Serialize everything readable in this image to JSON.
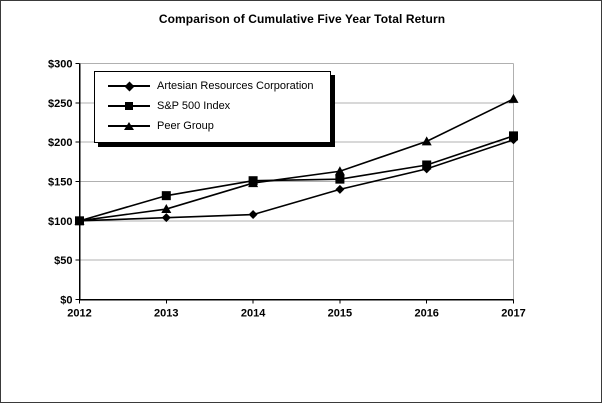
{
  "figure": {
    "title": "Comparison of Cumulative Five Year Total Return"
  },
  "chart_data": {
    "type": "line",
    "title": "Comparison of Cumulative Five Year Total Return",
    "categories": [
      "2012",
      "2013",
      "2014",
      "2015",
      "2016",
      "2017"
    ],
    "series": [
      {
        "name": "Artesian Resources Corporation",
        "marker": "diamond",
        "values": [
          100,
          104,
          108,
          140,
          166,
          203
        ]
      },
      {
        "name": "S&P 500 Index",
        "marker": "square",
        "values": [
          100,
          132,
          151,
          153,
          171,
          208
        ]
      },
      {
        "name": "Peer Group",
        "marker": "triangle",
        "values": [
          100,
          115,
          148,
          163,
          201,
          255
        ]
      }
    ],
    "xlabel": "",
    "ylabel": "",
    "ylim": [
      0,
      300
    ],
    "y_tick_step": 50,
    "y_tick_labels": [
      "$0",
      "$50",
      "$100",
      "$150",
      "$200",
      "$250",
      "$300"
    ],
    "x_tick_labels": [
      "2012",
      "2013",
      "2014",
      "2015",
      "2016",
      "2017"
    ],
    "grid": true,
    "legend_position": "upper-left-inside",
    "colors": {
      "line": "#000000",
      "marker": "#000000",
      "text": "#000000",
      "grid": "#b0b0b0",
      "plot_border": "#b0b0b0",
      "axis": "#000000",
      "legend_shadow": "#000000",
      "background": "#ffffff"
    }
  }
}
